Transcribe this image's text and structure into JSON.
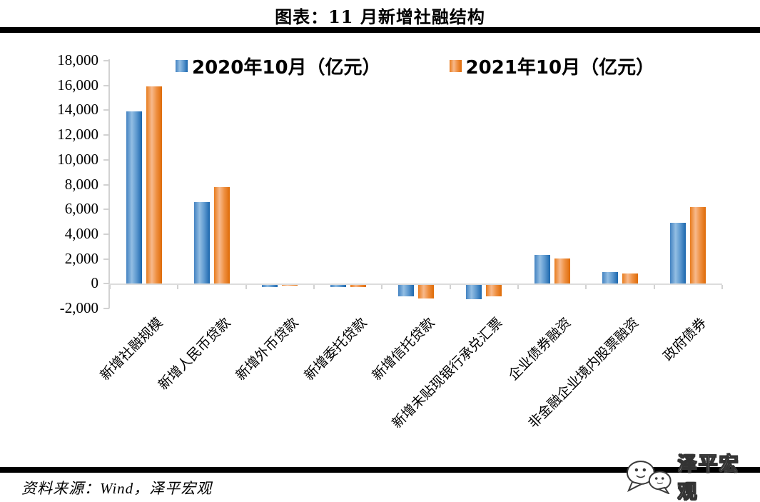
{
  "title": "图表：11 月新增社融结构",
  "legend": {
    "items": [
      {
        "label": "2020年10月（亿元）",
        "color": "#4e8ec9"
      },
      {
        "label": "2021年10月（亿元）",
        "color": "#ed7d31"
      }
    ]
  },
  "footer": {
    "source": "资料来源：Wind，泽平宏观"
  },
  "watermark": {
    "text": "泽平宏观",
    "icon": "chat-bubbles-logo"
  },
  "chart_data": {
    "type": "bar",
    "title": "图表：11 月新增社融结构",
    "unit": "亿元",
    "xlabel": "",
    "ylabel": "",
    "categories": [
      "新增社融规模",
      "新增人民币贷款",
      "新增外币贷款",
      "新增委托贷款",
      "新增信托贷款",
      "新增未贴现银行承兑汇票",
      "企业债券融资",
      "非金融企业境内股票融资",
      "政府债券"
    ],
    "series": [
      {
        "name": "2020年10月（亿元）",
        "color": "#4e8ec9",
        "values": [
          13900,
          6600,
          -130,
          -170,
          -880,
          -1120,
          2300,
          930,
          4900
        ]
      },
      {
        "name": "2021年10月（亿元）",
        "color": "#ed7d31",
        "values": [
          15900,
          7800,
          -30,
          -170,
          -1060,
          -890,
          2030,
          850,
          6200
        ]
      }
    ],
    "ylim": [
      -2000,
      18000
    ],
    "ytick_step": 2000,
    "ytick_labels": [
      "18,000",
      "16,000",
      "14,000",
      "12,000",
      "10,000",
      "8,000",
      "6,000",
      "4,000",
      "2,000",
      "0",
      "-2,000"
    ],
    "grid": false,
    "legend_position": "top"
  }
}
